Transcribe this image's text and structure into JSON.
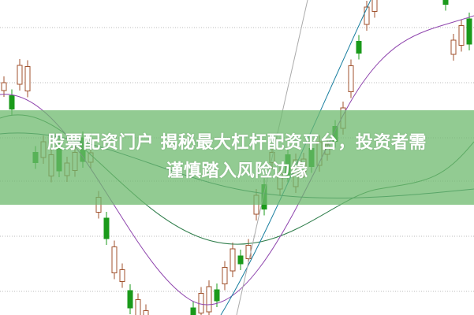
{
  "article": {
    "title_line1": "股票配资门户 揭秘最大杠杆配资平台，投资者需",
    "title_line2": "谨慎踏入风险边缘"
  },
  "colors": {
    "up": "#a0522d",
    "down": "#1a9a1a",
    "banner": "#6eb96e"
  }
}
